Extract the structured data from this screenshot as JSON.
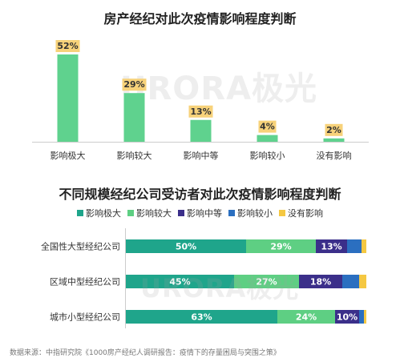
{
  "chart_data": [
    {
      "type": "bar",
      "title": "房产经纪对此次疫情影响程度判断",
      "categories": [
        "影响极大",
        "影响较大",
        "影响中等",
        "影响较小",
        "没有影响"
      ],
      "values": [
        52,
        29,
        13,
        4,
        2
      ],
      "value_labels": [
        "52%",
        "29%",
        "13%",
        "4%",
        "2%"
      ],
      "ylim": [
        0,
        52
      ],
      "grid": false,
      "colors": {
        "bar": "#5fd28e",
        "label_bg": "#f7d27a"
      }
    },
    {
      "type": "bar",
      "orientation": "horizontal",
      "stacked": true,
      "title": "不同规模经纪公司受访者对此次疫情影响程度判断",
      "categories": [
        "全国性大型经纪公司",
        "区域中型经纪公司",
        "城市小型经纪公司"
      ],
      "legend_position": "top",
      "series": [
        {
          "name": "影响极大",
          "color": "#1fa58b",
          "values": [
            50,
            45,
            63
          ],
          "labels": [
            "50%",
            "45%",
            "63%"
          ]
        },
        {
          "name": "影响较大",
          "color": "#5ecf83",
          "values": [
            29,
            27,
            24
          ],
          "labels": [
            "29%",
            "27%",
            "24%"
          ]
        },
        {
          "name": "影响中等",
          "color": "#3b2f8a",
          "values": [
            13,
            18,
            10
          ],
          "labels": [
            "13%",
            "18%",
            "10%"
          ]
        },
        {
          "name": "影响较小",
          "color": "#2b6fc0",
          "values": [
            6,
            7,
            2
          ],
          "labels": [
            "",
            "",
            ""
          ]
        },
        {
          "name": "没有影响",
          "color": "#f5c842",
          "values": [
            2,
            3,
            1
          ],
          "labels": [
            "",
            "",
            ""
          ]
        }
      ],
      "xlim": [
        0,
        100
      ]
    }
  ],
  "watermark": {
    "text": "URORA",
    "suffix": "极光"
  },
  "source": "数据来源：中指研究院《1000房产经纪人调研报告：疫情下的存量困局与突围之策》"
}
